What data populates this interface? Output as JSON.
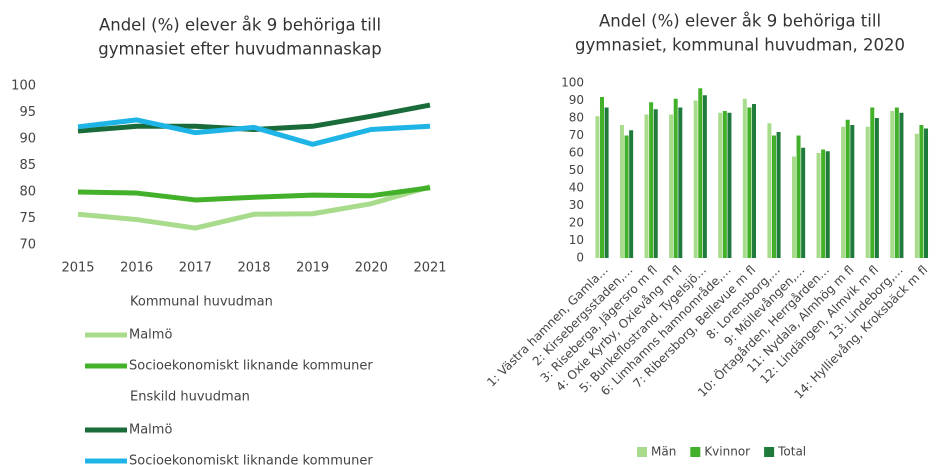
{
  "chart_data": [
    {
      "type": "line",
      "title": [
        "Andel (%) elever åk 9 behöriga till",
        "gymnasiet efter huvudmannaskap"
      ],
      "categories": [
        "2015",
        "2016",
        "2017",
        "2018",
        "2019",
        "2020",
        "2021"
      ],
      "ylim": [
        70,
        100
      ],
      "yticks": [
        70,
        75,
        80,
        85,
        90,
        95,
        100
      ],
      "grid": false,
      "groups": [
        {
          "title": "Kommunal huvudman",
          "series": [
            {
              "name": "Malmö",
              "color": "#a8dc8c",
              "values": [
                75.8,
                74.8,
                73.2,
                75.8,
                75.9,
                77.8,
                81.0
              ]
            },
            {
              "name": "Socioekonomiskt liknande kommuner",
              "color": "#43b02a",
              "values": [
                80.0,
                79.8,
                78.5,
                79.0,
                79.4,
                79.3,
                80.8
              ]
            }
          ]
        },
        {
          "title": "Enskild huvudman",
          "series": [
            {
              "name": "Malmö",
              "color": "#1a6b3a",
              "values": [
                91.5,
                92.4,
                92.4,
                91.8,
                92.4,
                94.3,
                96.4
              ]
            },
            {
              "name": "Socioekonomiskt liknande kommuner",
              "color": "#1fb4e6",
              "values": [
                92.3,
                93.6,
                91.2,
                92.2,
                89.0,
                91.8,
                92.4
              ]
            }
          ]
        }
      ]
    },
    {
      "type": "bar",
      "title": [
        "Andel (%) elever åk 9 behöriga till",
        "gymnasiet, kommunal huvudman, 2020"
      ],
      "categories": [
        "1: Västra hamnen, Gamla…",
        "2: Kirsebergsstaden,…",
        "3: Riseberga, Jägersro m fl",
        "4: Oxie Kyrby, Oxievång m fl",
        "5: Bunkeflostrand, Tygelsjö…",
        "6: Limhamns hamnområde,…",
        "7: Ribersborg, Bellevue m fl",
        "8: Lorensborg,…",
        "9: Möllevången,…",
        "10: Örtagården, Herrgården…",
        "11: Nydala, Almhög m fl",
        "12: Lindängen, Almvik m fl",
        "13: Lindeborg,…",
        "14: Hyllievång, Kroksbäck m fl"
      ],
      "ylim": [
        0,
        100
      ],
      "yticks": [
        0,
        10,
        20,
        30,
        40,
        50,
        60,
        70,
        80,
        90,
        100
      ],
      "grid": false,
      "series": [
        {
          "name": "Män",
          "color": "#a8dc8c",
          "values": [
            81,
            76,
            82,
            82,
            90,
            83,
            91,
            77,
            58,
            60,
            75,
            75,
            84,
            71
          ]
        },
        {
          "name": "Kvinnor",
          "color": "#43b02a",
          "values": [
            92,
            70,
            89,
            91,
            97,
            84,
            86,
            70,
            70,
            62,
            79,
            86,
            86,
            76
          ]
        },
        {
          "name": "Total",
          "color": "#1e7b3c",
          "values": [
            86,
            73,
            85,
            86,
            93,
            83,
            88,
            72,
            63,
            61,
            76,
            80,
            83,
            74
          ]
        }
      ]
    }
  ]
}
